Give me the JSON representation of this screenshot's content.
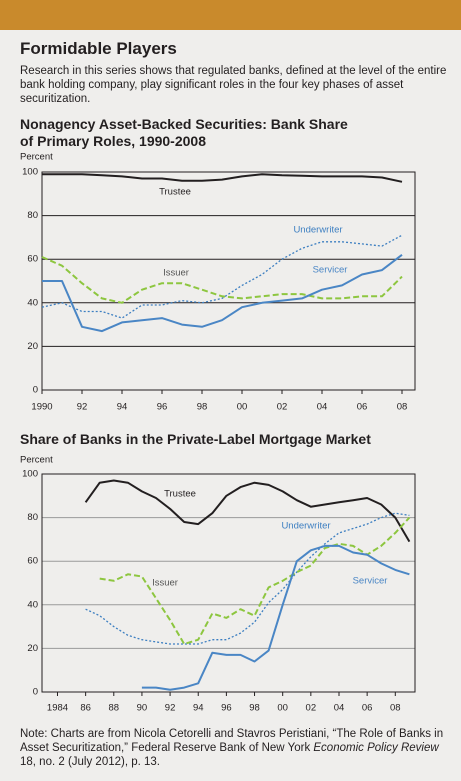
{
  "header": {
    "title": "Formidable Players",
    "text": "Research in this series shows that regulated banks, defined at the level of the entire bank holding company, play significant roles in the four key phases of asset securitization."
  },
  "note": {
    "prefix": "Note: Charts are from Nicola Cetorelli and Stavros Peristiani, “The Role of Banks in Asset Securitization,” Federal Reserve Bank of New York ",
    "journal": "Economic Policy Review",
    "suffix": " 18, no. 2 (July 2012), p. 13."
  },
  "chart_data": [
    {
      "type": "line",
      "title": "Nonagency Asset-Backed Securities: Bank Share of Primary Roles, 1990-2008",
      "y_label": "Percent",
      "x": [
        1990,
        1991,
        1992,
        1993,
        1994,
        1995,
        1996,
        1997,
        1998,
        1999,
        2000,
        2001,
        2002,
        2003,
        2004,
        2005,
        2006,
        2007,
        2008
      ],
      "xlim": [
        1990,
        2008.65
      ],
      "xticks": [
        1990,
        {
          "value": 1992,
          "label": "92"
        },
        {
          "value": 1994,
          "label": "94"
        },
        {
          "value": 1996,
          "label": "96"
        },
        {
          "value": 1998,
          "label": "98"
        },
        {
          "value": 2000,
          "label": "00"
        },
        {
          "value": 2002,
          "label": "02"
        },
        {
          "value": 2004,
          "label": "04"
        },
        {
          "value": 2006,
          "label": "06"
        },
        {
          "value": 2008,
          "label": "08"
        }
      ],
      "ylim": [
        0,
        100
      ],
      "yticks": [
        0,
        20,
        40,
        60,
        80,
        100
      ],
      "grid": true,
      "grid_color": "#231f20",
      "series": [
        {
          "name": "Trustee",
          "color": "#231f20",
          "line_style": "solid",
          "values": [
            99,
            99,
            99,
            98.5,
            98,
            97,
            97,
            96,
            96,
            96.5,
            98,
            99,
            98.5,
            98.3,
            98,
            98,
            98,
            97.5,
            95.5
          ]
        },
        {
          "name": "Underwriter",
          "color": "#3d7fc1",
          "line_style": "dotted",
          "values": [
            38,
            40,
            36,
            36,
            33,
            39,
            39,
            41,
            40,
            42,
            48,
            53,
            60,
            65,
            68,
            68,
            67,
            66,
            71
          ]
        },
        {
          "name": "Issuer",
          "color": "#8dc63f",
          "line_style": "dashed",
          "values": [
            61,
            57,
            49,
            42,
            40,
            46,
            49,
            49,
            46,
            43,
            42,
            43,
            44,
            44,
            42,
            42,
            43,
            43,
            52
          ]
        },
        {
          "name": "Servicer",
          "color": "#4a86c5",
          "line_style": "solid",
          "values": [
            50,
            50,
            29,
            27,
            31,
            32,
            33,
            30,
            29,
            32,
            38,
            40,
            41,
            42,
            46,
            48,
            53,
            55,
            62
          ]
        }
      ]
    },
    {
      "type": "line",
      "title": "Share of Banks in the Private-Label Mortgage Market",
      "y_label": "Percent",
      "x": [
        1986,
        1987,
        1988,
        1989,
        1990,
        1991,
        1992,
        1993,
        1994,
        1995,
        1996,
        1997,
        1998,
        1999,
        2000,
        2001,
        2002,
        2003,
        2004,
        2005,
        2006,
        2007,
        2008,
        2009
      ],
      "xlim": [
        1982.9,
        2009.4
      ],
      "xticks": [
        1984,
        {
          "value": 1986,
          "label": "86"
        },
        {
          "value": 1988,
          "label": "88"
        },
        {
          "value": 1990,
          "label": "90"
        },
        {
          "value": 1992,
          "label": "92"
        },
        {
          "value": 1994,
          "label": "94"
        },
        {
          "value": 1996,
          "label": "96"
        },
        {
          "value": 1998,
          "label": "98"
        },
        {
          "value": 2000,
          "label": "00"
        },
        {
          "value": 2002,
          "label": "02"
        },
        {
          "value": 2004,
          "label": "04"
        },
        {
          "value": 2006,
          "label": "06"
        },
        {
          "value": 2008,
          "label": "08"
        }
      ],
      "ylim": [
        0,
        100
      ],
      "yticks": [
        0,
        20,
        40,
        60,
        80,
        100
      ],
      "grid": true,
      "grid_color": "#9a9a9a",
      "series": [
        {
          "name": "Trustee",
          "color": "#231f20",
          "line_style": "solid",
          "values": [
            87,
            96,
            97,
            96,
            92,
            89,
            84,
            78,
            77,
            82,
            90,
            94,
            96,
            95,
            92,
            88,
            85,
            86,
            87,
            88,
            89,
            86,
            80,
            69
          ]
        },
        {
          "name": "Underwriter",
          "color": "#3d7fc1",
          "line_style": "dotted",
          "values": [
            38,
            35,
            30,
            26,
            24,
            23,
            22,
            22,
            22,
            24,
            24,
            27,
            32,
            41,
            47,
            55,
            62,
            68,
            73,
            75,
            77,
            80,
            82,
            81
          ]
        },
        {
          "name": "Issuer",
          "color": "#8dc63f",
          "line_style": "dashed",
          "values": [
            null,
            52,
            51,
            54,
            53,
            43,
            33,
            22,
            24,
            36,
            34,
            38,
            35,
            48,
            51,
            55,
            58,
            66,
            68,
            67,
            63,
            67,
            73,
            80
          ]
        },
        {
          "name": "Servicer",
          "color": "#4a86c5",
          "line_style": "solid",
          "values": [
            null,
            null,
            null,
            null,
            2,
            2,
            1,
            2,
            4,
            18,
            17,
            17,
            14,
            19,
            40,
            60,
            65,
            67,
            67,
            64,
            63,
            59,
            56,
            54
          ]
        }
      ]
    }
  ]
}
